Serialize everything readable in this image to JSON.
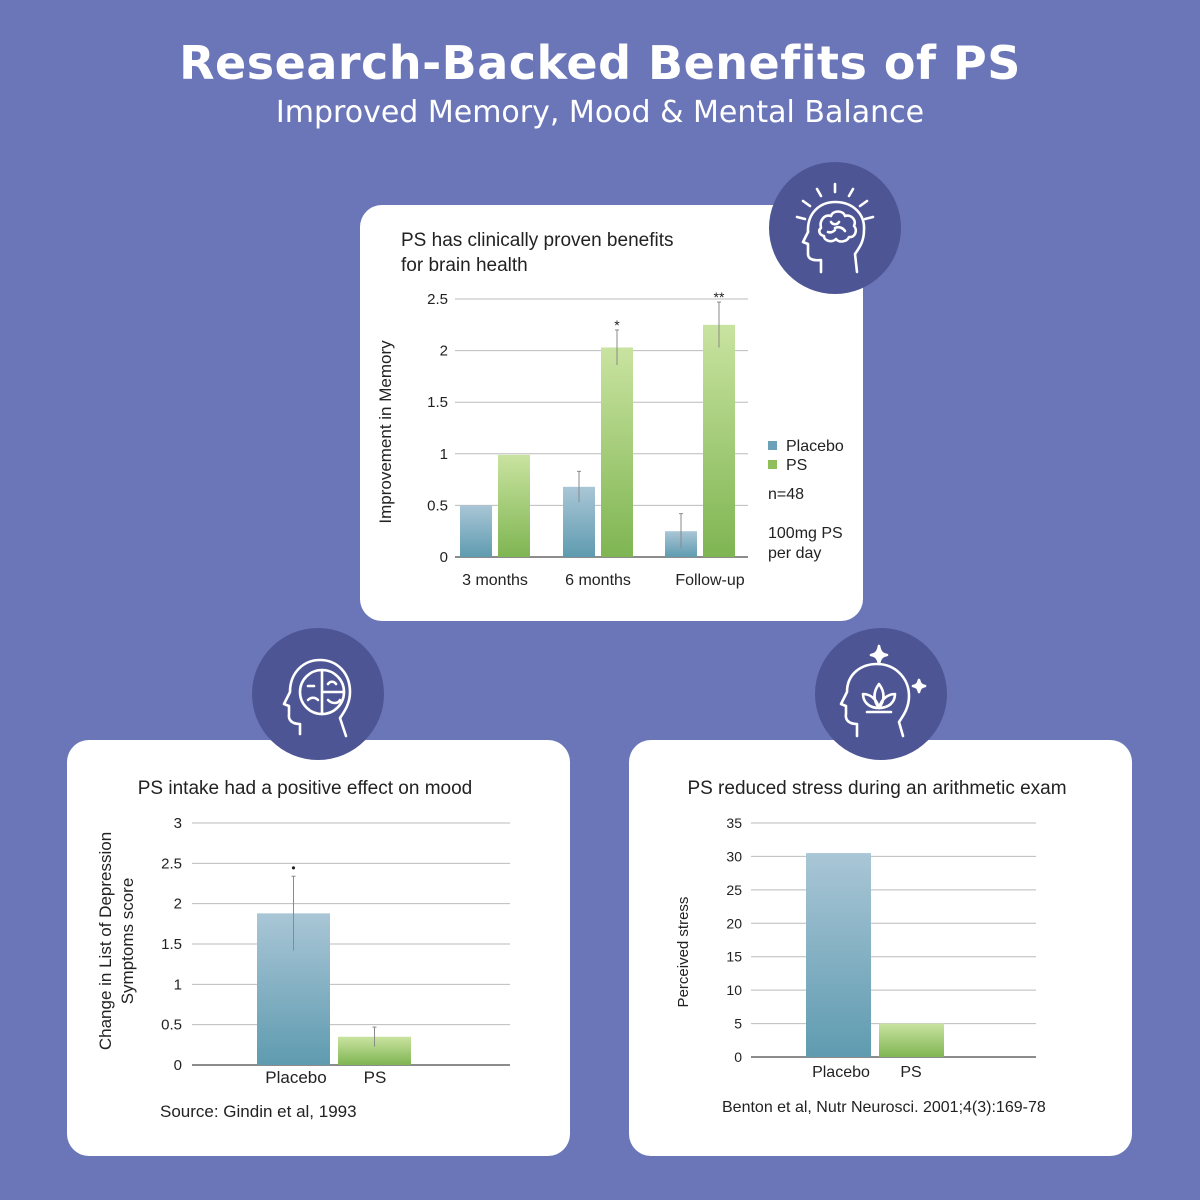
{
  "header": {
    "title": "Research-Backed Benefits of PS",
    "subtitle": "Improved Memory, Mood & Mental Balance"
  },
  "colors": {
    "background": "#6b76b9",
    "icon_circle": "#4d5594",
    "placebo_top": "#a9c6d6",
    "placebo_bottom": "#5f9bb0",
    "ps_top": "#c9e3a0",
    "ps_bottom": "#7fb552"
  },
  "icons": {
    "memory": "brain-idea-icon",
    "mood": "happy-sad-face-head-icon",
    "stress": "lotus-head-icon"
  },
  "chart_data": [
    {
      "id": "memory",
      "type": "bar",
      "title_lines": [
        "PS has clinically proven benefits",
        "for brain health"
      ],
      "ylabel": "Improvement in Memory",
      "xlabel": "",
      "categories": [
        "3 months",
        "6 months",
        "Follow-up"
      ],
      "series": [
        {
          "name": "Placebo",
          "values": [
            0.5,
            0.68,
            0.25
          ],
          "errors": [
            0,
            0.15,
            0.17
          ]
        },
        {
          "name": "PS",
          "values": [
            0.99,
            2.03,
            2.25
          ],
          "errors": [
            0,
            0.17,
            0.22
          ]
        }
      ],
      "significance": [
        "",
        "*",
        "**"
      ],
      "yticks": [
        0,
        0.5,
        1,
        1.5,
        2,
        2.5
      ],
      "ytick_labels": [
        "0",
        "0.5",
        "1",
        "1.5",
        "2",
        "2.5"
      ],
      "ylim": [
        0,
        2.5
      ],
      "grid": true,
      "legend_position": "right",
      "notes": [
        "n=48",
        "100mg PS",
        "per day"
      ]
    },
    {
      "id": "mood",
      "type": "bar",
      "title_lines": [
        "PS intake had a positive effect on mood"
      ],
      "ylabel_lines": [
        "Change in List of Depression",
        "Symptoms score"
      ],
      "xlabel": "",
      "categories": [
        "Placebo",
        "PS"
      ],
      "values": [
        1.88,
        0.35
      ],
      "errors": [
        0.46,
        0.12
      ],
      "significance": [
        "•",
        ""
      ],
      "yticks": [
        0,
        0.5,
        1,
        1.5,
        2,
        2.5,
        3
      ],
      "ytick_labels": [
        "0",
        "0.5",
        "1",
        "1.5",
        "2",
        "2.5",
        "3"
      ],
      "ylim": [
        0,
        3
      ],
      "grid": true,
      "source": "Source: Gindin et al,  1993"
    },
    {
      "id": "stress",
      "type": "bar",
      "title_lines": [
        "PS reduced stress during an arithmetic exam"
      ],
      "ylabel": "Perceived stress",
      "xlabel": "",
      "categories": [
        "Placebo",
        "PS"
      ],
      "values": [
        30.5,
        5
      ],
      "yticks": [
        0,
        5,
        10,
        15,
        20,
        25,
        30,
        35
      ],
      "ytick_labels": [
        "0",
        "5",
        "10",
        "15",
        "20",
        "25",
        "30",
        "35"
      ],
      "ylim": [
        0,
        35
      ],
      "grid": true,
      "source": "Benton et al, Nutr Neurosci. 2001;4(3):169-78"
    }
  ]
}
